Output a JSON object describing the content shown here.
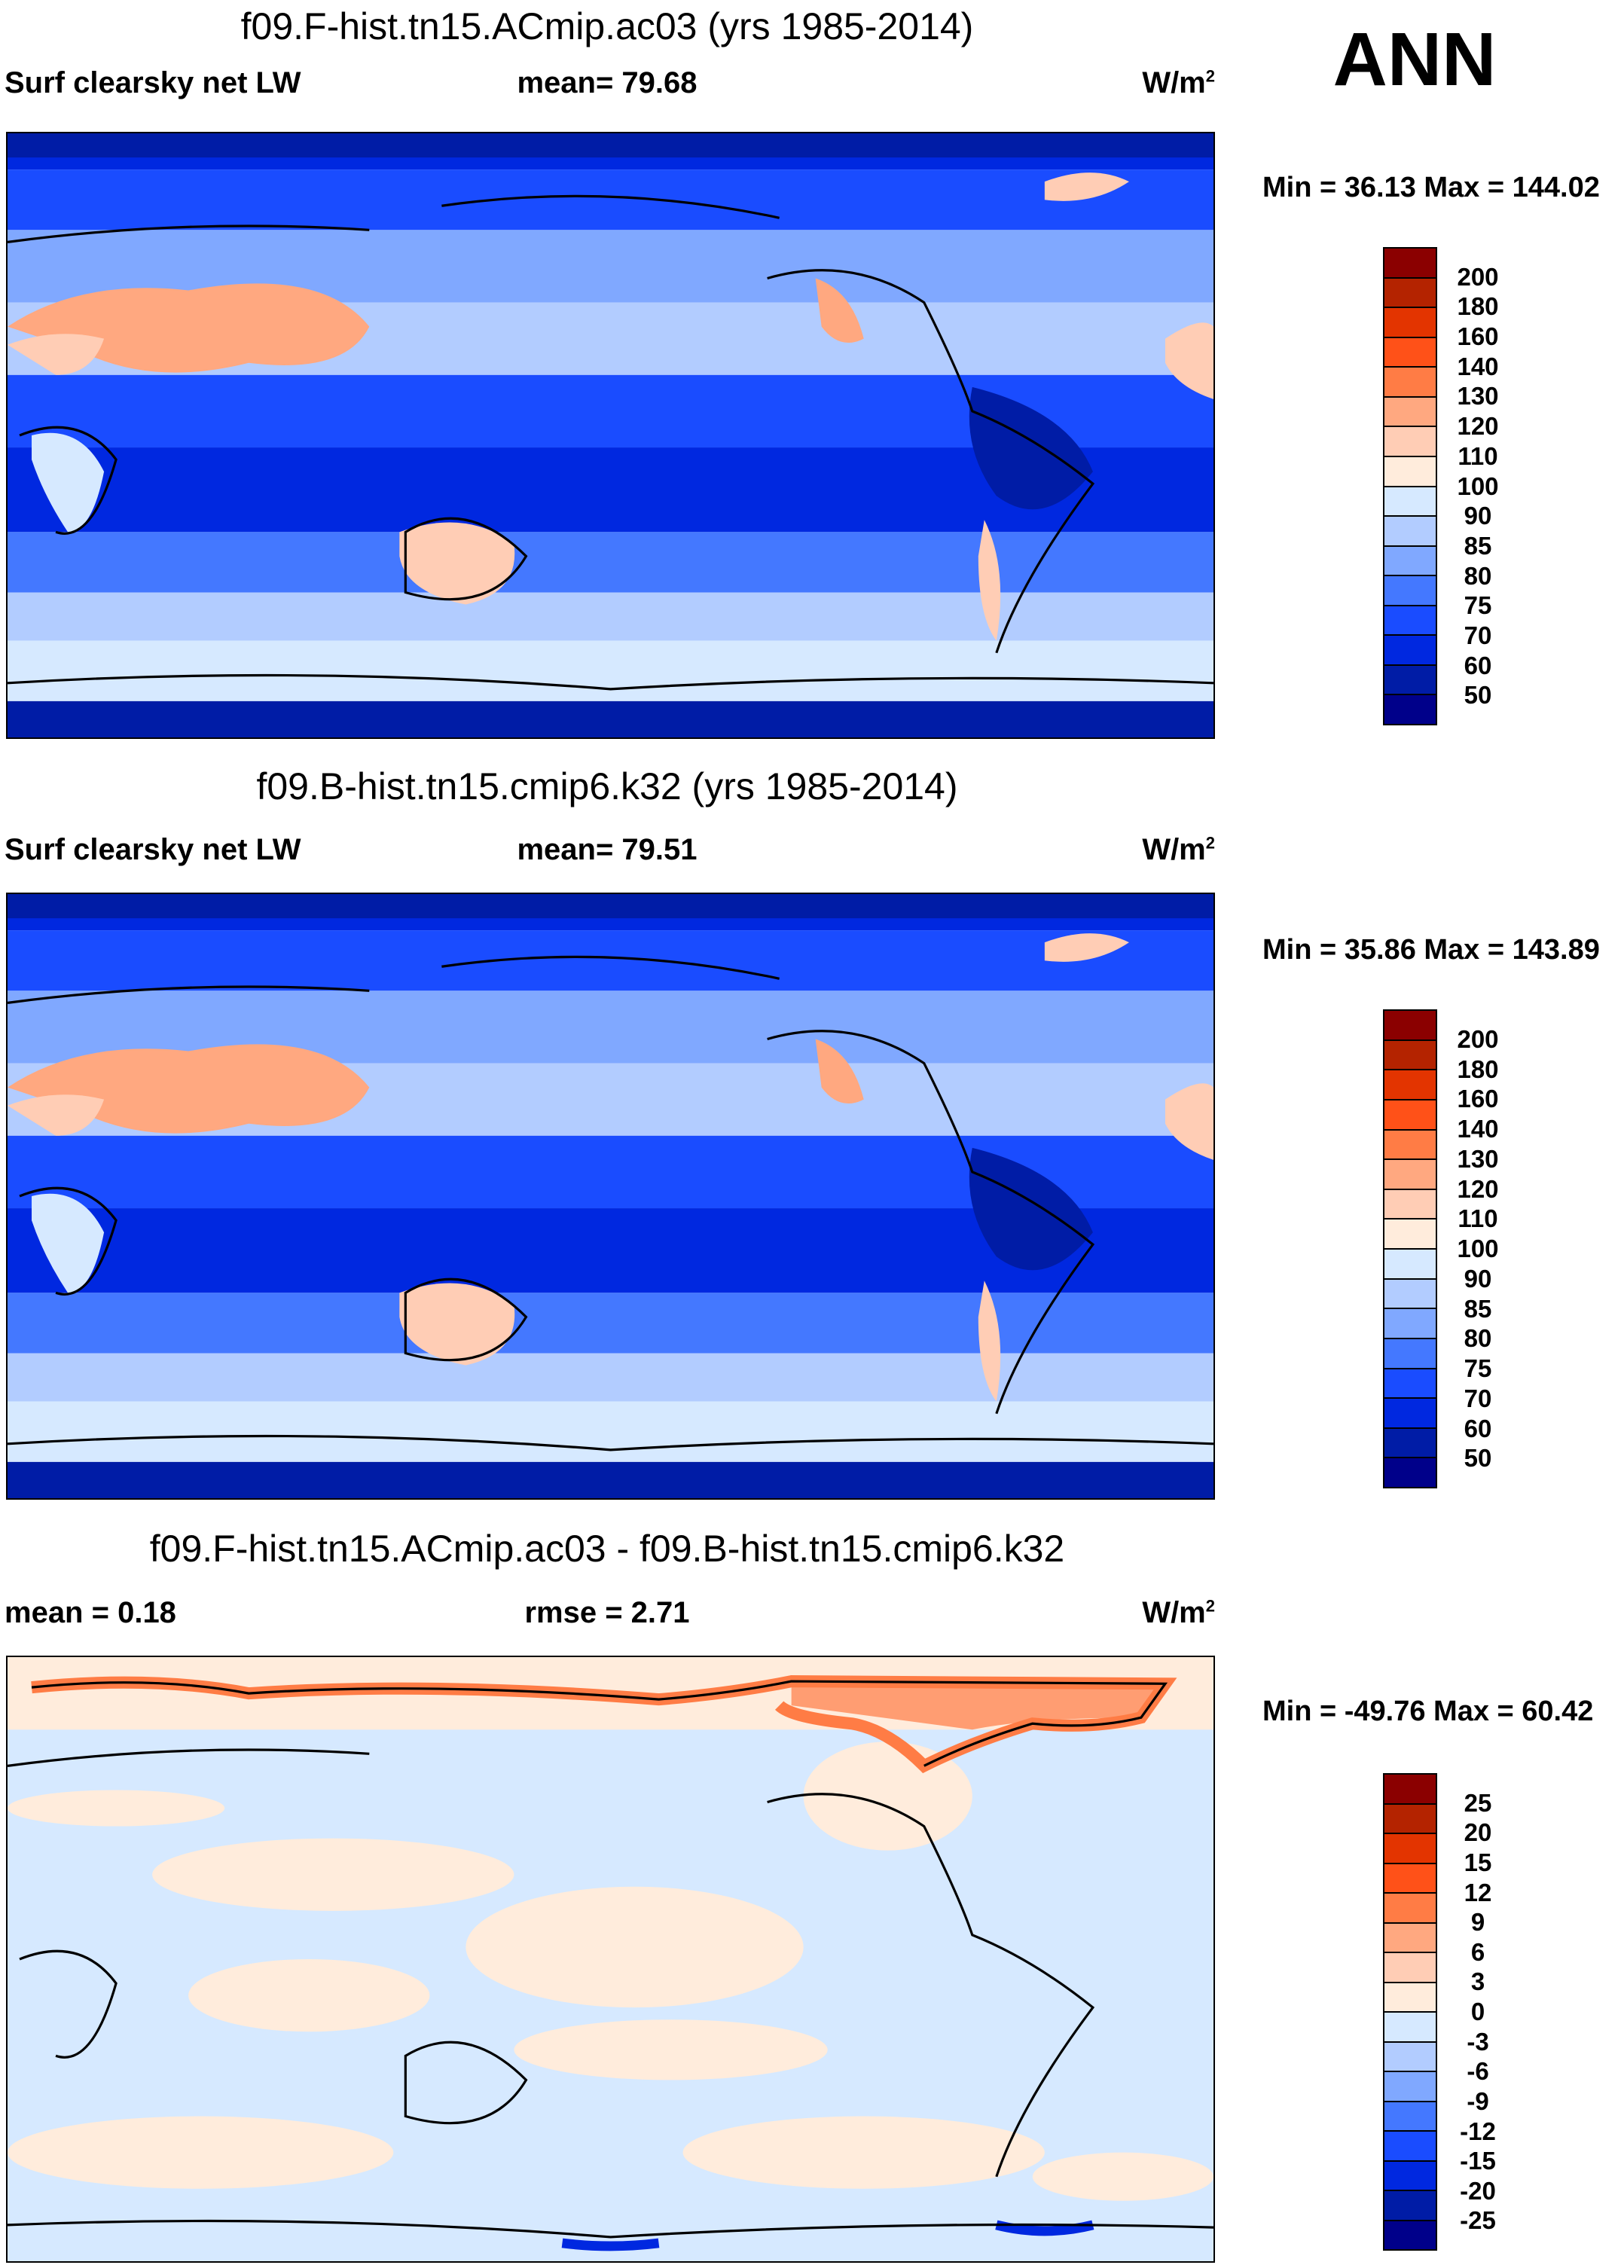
{
  "season": "ANN",
  "units_base": "W/m",
  "units_exp": "2",
  "chart_data": [
    {
      "type": "heatmap",
      "title": "f09.F-hist.tn15.ACmip.ac03 (yrs 1985-2014)",
      "variable": "Surf clearsky net LW",
      "stat_text": "mean=  79.68",
      "minmax_text": "Min =  36.13 Max = 144.02",
      "mean": 79.68,
      "min": 36.13,
      "max": 144.02,
      "levels": [
        "200",
        "180",
        "160",
        "140",
        "130",
        "120",
        "110",
        "100",
        "90",
        "85",
        "80",
        "75",
        "70",
        "60",
        "50"
      ],
      "mode": "abs"
    },
    {
      "type": "heatmap",
      "title": "f09.B-hist.tn15.cmip6.k32 (yrs 1985-2014)",
      "variable": "Surf clearsky net LW",
      "stat_text": "mean=  79.51",
      "minmax_text": "Min =  35.86 Max = 143.89",
      "mean": 79.51,
      "min": 35.86,
      "max": 143.89,
      "levels": [
        "200",
        "180",
        "160",
        "140",
        "130",
        "120",
        "110",
        "100",
        "90",
        "85",
        "80",
        "75",
        "70",
        "60",
        "50"
      ],
      "mode": "abs"
    },
    {
      "type": "heatmap",
      "title": "f09.F-hist.tn15.ACmip.ac03 - f09.B-hist.tn15.cmip6.k32",
      "variable": "mean =   0.18",
      "stat_text": "rmse =   2.71",
      "minmax_text": "Min = -49.76 Max =  60.42",
      "mean": 0.18,
      "rmse": 2.71,
      "min": -49.76,
      "max": 60.42,
      "levels": [
        "25",
        "20",
        "15",
        "12",
        "9",
        "6",
        "3",
        "0",
        "-3",
        "-6",
        "-9",
        "-12",
        "-15",
        "-20",
        "-25"
      ],
      "mode": "diff"
    }
  ],
  "colors": [
    "#8b0000",
    "#b42300",
    "#e33400",
    "#ff5118",
    "#ff7c45",
    "#ffa880",
    "#ffcdb5",
    "#ffecdc",
    "#d6e9ff",
    "#b2ccff",
    "#80a8ff",
    "#4478ff",
    "#1a4cff",
    "#0028e0",
    "#001ca6",
    "#00008a"
  ]
}
